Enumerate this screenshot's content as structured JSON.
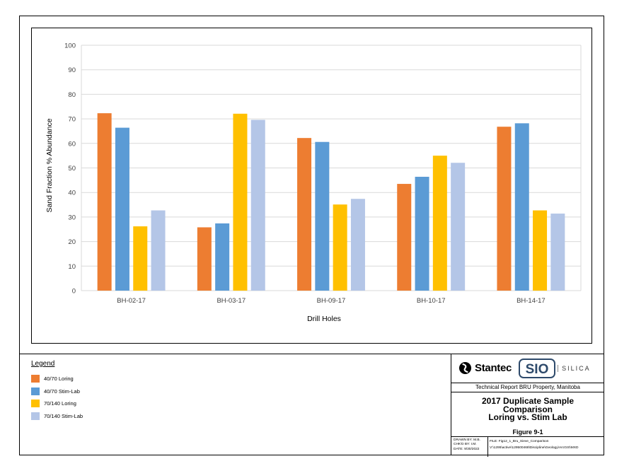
{
  "chart_data": {
    "type": "bar",
    "categories": [
      "BH-02-17",
      "BH-03-17",
      "BH-09-17",
      "BH-10-17",
      "BH-14-17"
    ],
    "series": [
      {
        "name": "40/70 Loring",
        "color": "#ED7D31",
        "values": [
          72.3,
          25.8,
          62.2,
          43.5,
          66.8
        ]
      },
      {
        "name": "40/70 Stim-Lab",
        "color": "#5B9BD5",
        "values": [
          66.4,
          27.4,
          60.6,
          46.4,
          68.2
        ]
      },
      {
        "name": "70/140 Loring",
        "color": "#FFC000",
        "values": [
          26.2,
          72.1,
          35.1,
          55.0,
          32.7
        ]
      },
      {
        "name": "70/140 Stim-Lab",
        "color": "#B4C6E7",
        "values": [
          32.7,
          69.6,
          37.4,
          52.1,
          31.4
        ]
      }
    ],
    "xlabel": "Drill Holes",
    "ylabel": "Sand Fraction % Abundance",
    "ylim": [
      0,
      100
    ],
    "yticks": [
      0,
      10,
      20,
      30,
      40,
      50,
      60,
      70,
      80,
      90,
      100
    ],
    "grid": true,
    "legend": "bottom-left"
  },
  "legend": {
    "title": "Legend",
    "items": [
      {
        "label": "40/70 Loring",
        "color": "#ED7D31"
      },
      {
        "label": "40/70 Stim-Lab",
        "color": "#5B9BD5"
      },
      {
        "label": "70/140 Loring",
        "color": "#FFC000"
      },
      {
        "label": "70/140 Stim-Lab",
        "color": "#B4C6E7"
      }
    ]
  },
  "title_block": {
    "company": "Stantec",
    "partner_logo_text": "SIO",
    "partner_name": "SILICA",
    "report_title": "Technical Report BRU Property, Manitoba",
    "figure_title_line1": "2017 Duplicate Sample",
    "figure_title_line2": "Comparison",
    "figure_title_line3": "Loring vs. Stim Lab",
    "figure_number": "Figure 9-1",
    "drawn_by": "DRAWN BY: M.B.",
    "checked_by": "CHK'D BY: I.M.",
    "date": "DATE:   9/30/2022",
    "file": "FILE: Fig12_1_Bru_Sieve_Comparison",
    "path": "V:\\1295\\active\\129500468\\Discipline\\Geology\\ArcGIS\\MXD"
  },
  "colors": {
    "gridline": "#D9D9D9",
    "axis_text": "#404040"
  }
}
